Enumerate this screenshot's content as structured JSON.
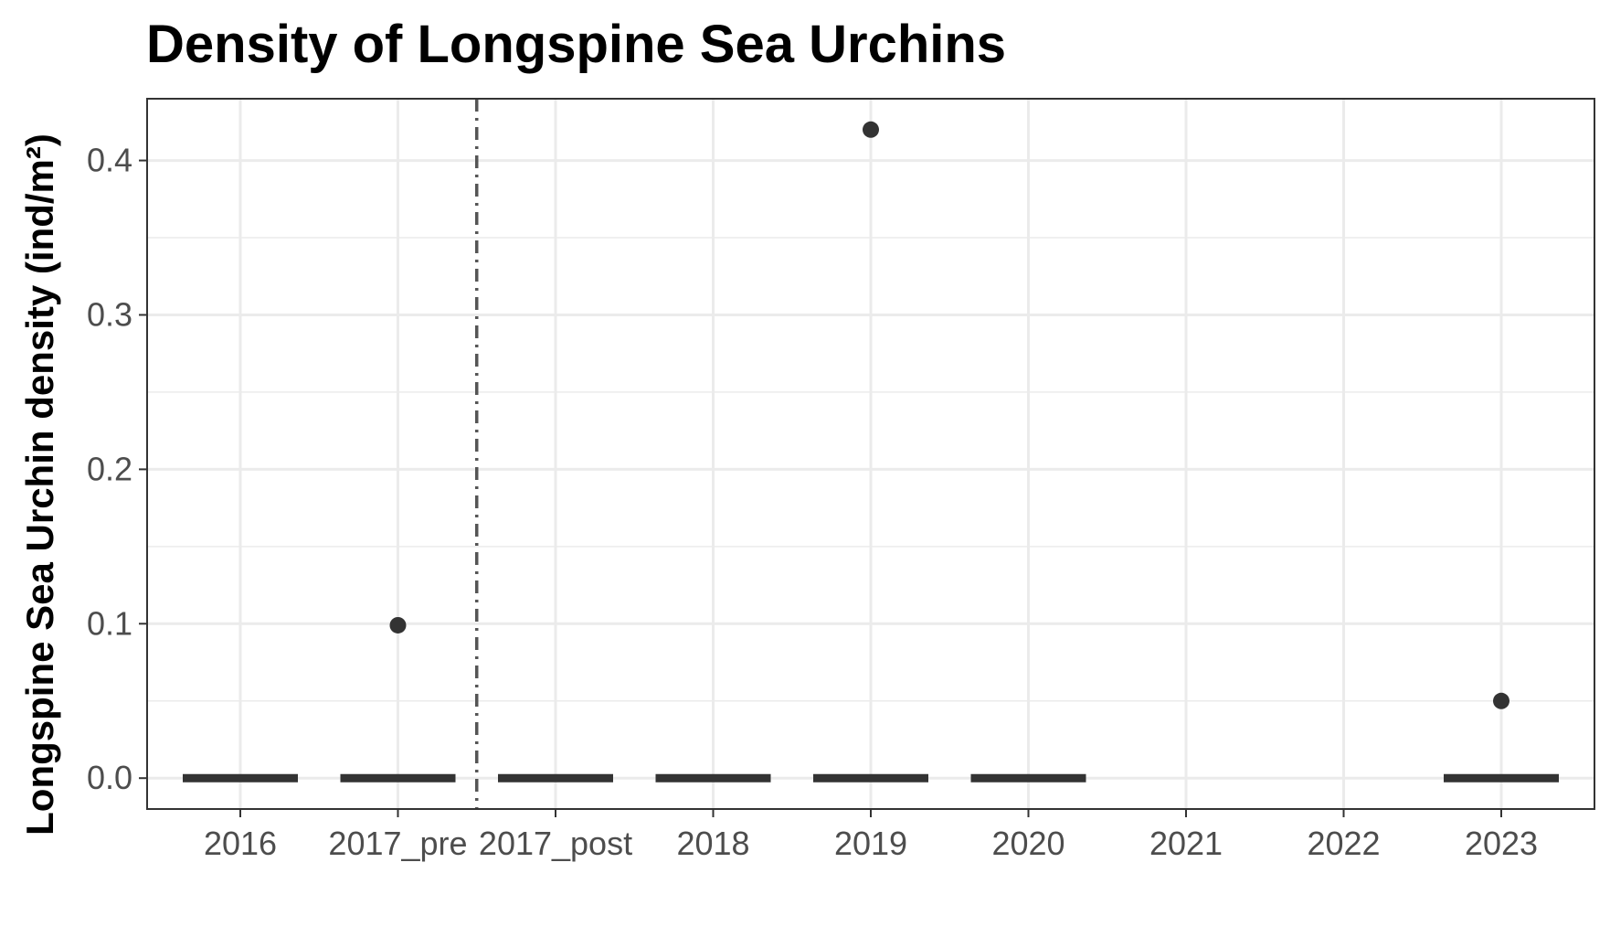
{
  "chart_data": {
    "type": "boxplot",
    "title": "Density of Longspine Sea Urchins",
    "xlabel": "",
    "ylabel": "Longspine Sea Urchin density (ind/m²)",
    "categories": [
      "2016",
      "2017_pre",
      "2017_post",
      "2018",
      "2019",
      "2020",
      "2021",
      "2022",
      "2023"
    ],
    "ylim": [
      -0.02,
      0.44
    ],
    "yticks": [
      0.0,
      0.1,
      0.2,
      0.3,
      0.4
    ],
    "ytick_labels": [
      "0.0",
      "0.1",
      "0.2",
      "0.3",
      "0.4"
    ],
    "boxes": [
      {
        "category": "2016",
        "median": 0.0,
        "q1": 0.0,
        "q3": 0.0
      },
      {
        "category": "2017_pre",
        "median": 0.0,
        "q1": 0.0,
        "q3": 0.0
      },
      {
        "category": "2017_post",
        "median": 0.0,
        "q1": 0.0,
        "q3": 0.0
      },
      {
        "category": "2018",
        "median": 0.0,
        "q1": 0.0,
        "q3": 0.0
      },
      {
        "category": "2019",
        "median": 0.0,
        "q1": 0.0,
        "q3": 0.0
      },
      {
        "category": "2020",
        "median": 0.0,
        "q1": 0.0,
        "q3": 0.0
      },
      {
        "category": "2023",
        "median": 0.0,
        "q1": 0.0,
        "q3": 0.0
      }
    ],
    "outliers": [
      {
        "category": "2017_pre",
        "value": 0.099
      },
      {
        "category": "2019",
        "value": 0.42
      },
      {
        "category": "2023",
        "value": 0.05
      }
    ],
    "reference_line": {
      "between": [
        "2017_pre",
        "2017_post"
      ],
      "style": "dashdot"
    },
    "grid": true,
    "colors": {
      "marks": "#333333",
      "grid": "#ebebeb",
      "border": "#333333",
      "refline": "#555555"
    }
  }
}
